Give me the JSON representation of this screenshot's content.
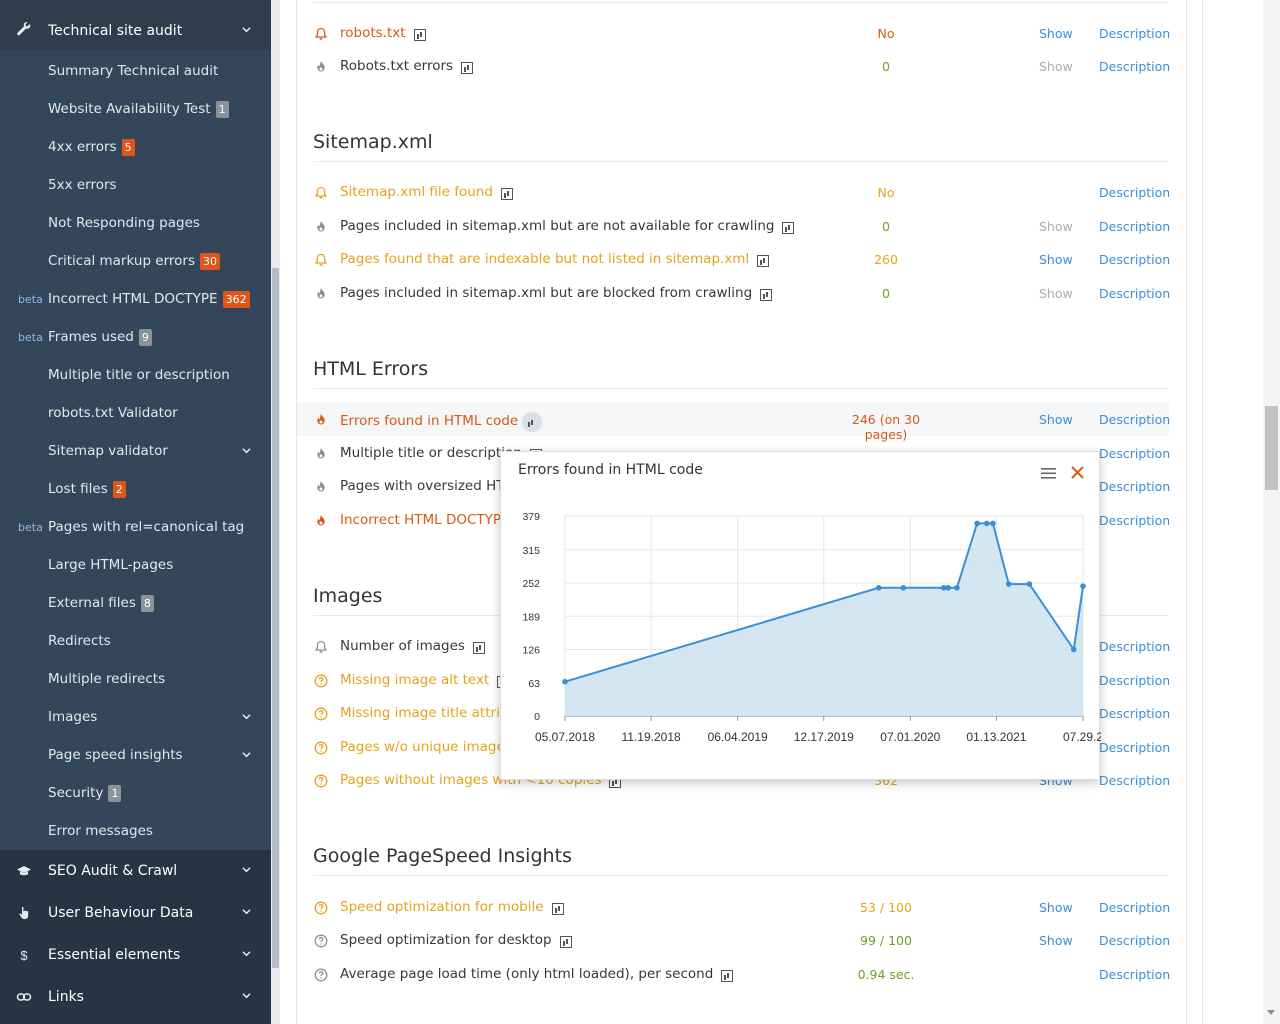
{
  "sidebar": {
    "header": {
      "label": "Technical site audit",
      "icon": "wrench-icon"
    },
    "items": [
      {
        "label": "Summary Technical audit"
      },
      {
        "label": "Website Availability Test",
        "badge": "1",
        "badge_color": "grey"
      },
      {
        "label": "4xx errors",
        "badge": "5",
        "badge_color": "orange"
      },
      {
        "label": "5xx errors"
      },
      {
        "label": "Not Responding pages"
      },
      {
        "label": "Critical markup errors",
        "badge": "30",
        "badge_color": "orange"
      },
      {
        "label": "Incorrect HTML DOCTYPE",
        "badge": "362",
        "badge_color": "orange",
        "beta": "beta"
      },
      {
        "label": "Frames used",
        "badge": "9",
        "badge_color": "grey",
        "beta": "beta"
      },
      {
        "label": "Multiple title or description"
      },
      {
        "label": "robots.txt Validator"
      },
      {
        "label": "Sitemap validator",
        "expandable": true
      },
      {
        "label": "Lost files",
        "badge": "2",
        "badge_color": "orange"
      },
      {
        "label": "Pages with rel=canonical tag",
        "beta": "beta"
      },
      {
        "label": "Large HTML-pages"
      },
      {
        "label": "External files",
        "badge": "8",
        "badge_color": "grey"
      },
      {
        "label": "Redirects"
      },
      {
        "label": "Multiple redirects"
      },
      {
        "label": "Images",
        "expandable": true
      },
      {
        "label": "Page speed insights",
        "expandable": true
      },
      {
        "label": "Security",
        "badge": "1",
        "badge_color": "grey"
      },
      {
        "label": "Error messages"
      }
    ],
    "groups": [
      {
        "label": "SEO Audit & Crawl",
        "icon": "graduation-cap-icon"
      },
      {
        "label": "User Behaviour Data",
        "icon": "hand-pointer-icon"
      },
      {
        "label": "Essential elements",
        "icon": "dollar-icon"
      },
      {
        "label": "Links",
        "icon": "link-icon"
      }
    ]
  },
  "main": {
    "show_label": "Show",
    "description_label": "Description",
    "sections": [
      {
        "title": "",
        "rows": [
          {
            "name": "robots.txt",
            "value": "No",
            "status": "bell",
            "color": "red",
            "show": true
          },
          {
            "name": "Robots.txt errors",
            "value": "0",
            "status": "fire",
            "color": "dark",
            "show": false,
            "value_color": "green"
          }
        ]
      },
      {
        "title": "Sitemap.xml",
        "rows": [
          {
            "name": "Sitemap.xml file found",
            "value": "No",
            "status": "bell",
            "color": "orange",
            "show": null
          },
          {
            "name": "Pages included in sitemap.xml but are not available for crawling",
            "value": "0",
            "status": "fire",
            "color": "dark",
            "show": false,
            "value_color": "green"
          },
          {
            "name": "Pages found that are indexable but not listed in sitemap.xml",
            "value": "260",
            "status": "bell",
            "color": "orange",
            "show": true
          },
          {
            "name": "Pages included in sitemap.xml but are blocked from crawling",
            "value": "0",
            "status": "fire",
            "color": "dark",
            "show": false,
            "value_color": "green"
          }
        ]
      },
      {
        "title": "HTML Errors",
        "rows": [
          {
            "name": "Errors found in HTML code",
            "value": "246 (on 30 pages)",
            "status": "fire",
            "color": "red",
            "show": true,
            "highlight": true
          },
          {
            "name": "Multiple title or description",
            "value": "",
            "status": "fire",
            "color": "dark",
            "show": null
          },
          {
            "name": "Pages with oversized HTML",
            "value": "",
            "status": "fire",
            "color": "dark",
            "show": null
          },
          {
            "name": "Incorrect HTML DOCTYPE",
            "value": "",
            "status": "fire",
            "color": "red",
            "show": null
          }
        ]
      },
      {
        "title": "Images",
        "rows": [
          {
            "name": "Number of images",
            "value": "",
            "status": "bell",
            "color": "dark",
            "show": null
          },
          {
            "name": "Missing image alt text",
            "value": "",
            "status": "question",
            "color": "orange",
            "show": null
          },
          {
            "name": "Missing image title attribu",
            "value": "",
            "status": "question",
            "color": "orange",
            "show": null
          },
          {
            "name": "Pages w/o unique images",
            "value": "",
            "status": "question",
            "color": "orange",
            "show": null
          },
          {
            "name": "Pages without images with <10 copies",
            "value": "362",
            "status": "question",
            "color": "orange",
            "show": true
          }
        ]
      },
      {
        "title": "Google PageSpeed Insights",
        "rows": [
          {
            "name": "Speed optimization for mobile",
            "value": "53 / 100",
            "status": "question",
            "color": "orange",
            "show": true,
            "value_color": "orange"
          },
          {
            "name": "Speed optimization for desktop",
            "value": "99 / 100",
            "status": "question-grey",
            "color": "dark",
            "show": true,
            "value_color": "green"
          },
          {
            "name": "Average page load time (only html loaded), per second",
            "value": "0.94 sec.",
            "status": "question-grey",
            "color": "dark",
            "show": null,
            "value_color": "green"
          }
        ]
      }
    ]
  },
  "popup": {
    "title": "Errors found in HTML code",
    "menu_icon": "hamburger-menu-icon",
    "close_icon": "close-icon"
  },
  "chart_data": {
    "type": "area",
    "title": "Errors found in HTML code",
    "y_ticks": [
      0,
      63,
      126,
      189,
      252,
      315,
      379
    ],
    "x_ticks": [
      "05.07.2018",
      "11.19.2018",
      "06.04.2019",
      "12.17.2019",
      "07.01.2020",
      "01.13.2021",
      "07.29.2"
    ],
    "ylim": [
      0,
      379
    ],
    "grid": true,
    "legend": "none",
    "color": "#3a8fd6",
    "fill": "#cfe3f1",
    "series": [
      {
        "values": [
          {
            "x": "2018-05-07",
            "y": 65
          },
          {
            "x": "2020-04-20",
            "y": 243
          },
          {
            "x": "2020-06-15",
            "y": 243
          },
          {
            "x": "2020-09-15",
            "y": 243
          },
          {
            "x": "2020-09-25",
            "y": 243
          },
          {
            "x": "2020-10-15",
            "y": 243
          },
          {
            "x": "2020-11-30",
            "y": 365
          },
          {
            "x": "2020-12-22",
            "y": 365
          },
          {
            "x": "2021-01-05",
            "y": 365
          },
          {
            "x": "2021-02-10",
            "y": 250
          },
          {
            "x": "2021-03-29",
            "y": 250
          },
          {
            "x": "2021-07-08",
            "y": 126
          },
          {
            "x": "2021-07-29",
            "y": 246
          }
        ]
      }
    ]
  }
}
